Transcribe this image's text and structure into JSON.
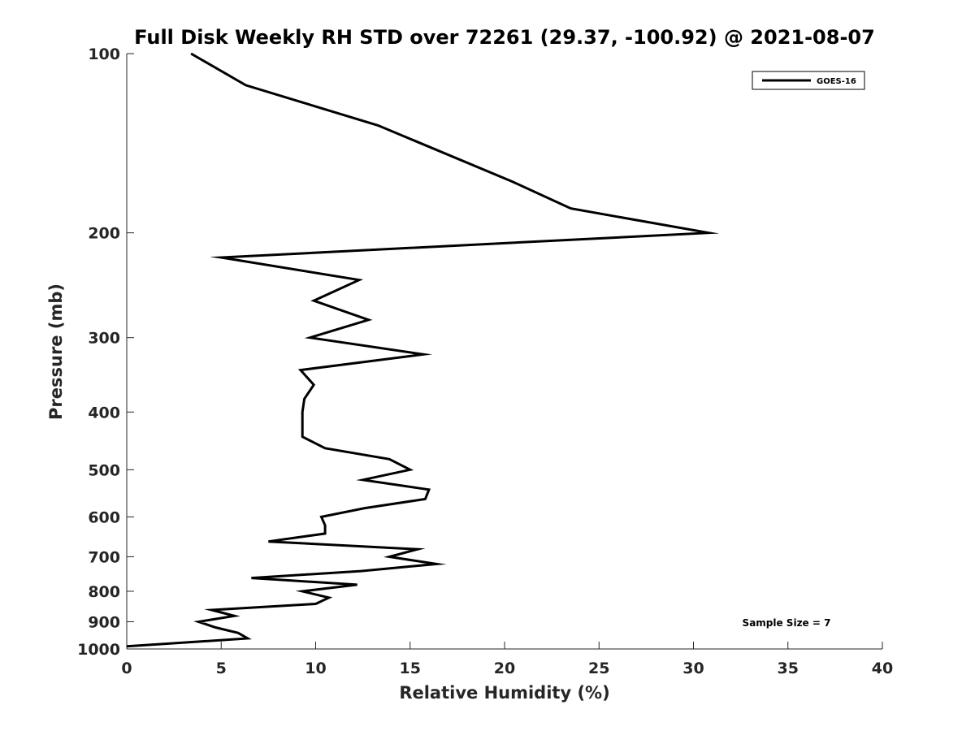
{
  "chart_data": {
    "type": "line",
    "title": "Full Disk Weekly RH STD over 72261 (29.37, -100.92) @ 2021-08-07",
    "xlabel": "Relative Humidity (%)",
    "ylabel": "Pressure (mb)",
    "xlim": [
      0,
      40
    ],
    "ylim": [
      1000,
      100
    ],
    "yscale": "log",
    "xticks": [
      0,
      5,
      10,
      15,
      20,
      25,
      30,
      35,
      40
    ],
    "yticks": [
      100,
      200,
      300,
      400,
      500,
      600,
      700,
      800,
      900,
      1000
    ],
    "grid": false,
    "legend_position": "top-right",
    "annotation": "Sample Size = 7",
    "series": [
      {
        "name": "GOES-16",
        "color": "#000000",
        "x": [
          3.4,
          6.3,
          13.3,
          20.4,
          23.5,
          30.8,
          5.0,
          12.3,
          9.9,
          12.8,
          9.7,
          15.7,
          9.2,
          9.9,
          9.4,
          9.3,
          9.3,
          9.3,
          10.5,
          13.9,
          15.0,
          12.5,
          16.0,
          15.8,
          12.6,
          10.3,
          10.5,
          10.5,
          7.5,
          15.4,
          13.9,
          16.4,
          12.4,
          6.6,
          12.2,
          9.3,
          10.7,
          10.0,
          4.5,
          5.7,
          3.8,
          4.7,
          5.9,
          6.4,
          0.0
        ],
        "y": [
          100,
          113,
          132,
          164,
          182,
          200,
          220,
          240,
          260,
          280,
          300,
          320,
          340,
          360,
          380,
          400,
          420,
          440,
          460,
          480,
          500,
          520,
          540,
          560,
          580,
          600,
          620,
          640,
          660,
          680,
          700,
          720,
          740,
          760,
          780,
          800,
          820,
          840,
          860,
          880,
          900,
          920,
          940,
          960,
          990
        ]
      }
    ]
  }
}
